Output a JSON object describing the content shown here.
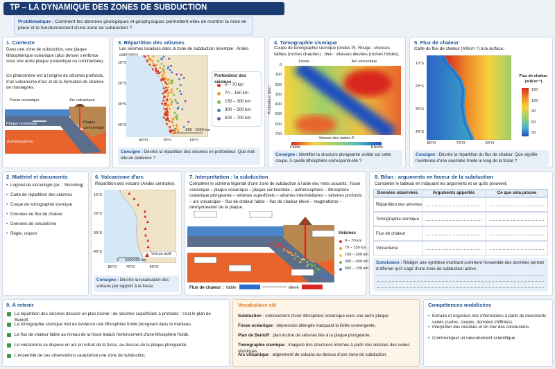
{
  "header": {
    "title": "TP – LA DYNAMIQUE DES ZONES DE SUBDUCTION",
    "problem_label": "Problématique :",
    "problem": "Comment les données géologiques et géophysiques permettent-elles de montrer la mise en place et le fonctionnement d'une zone de subduction ?"
  },
  "context": {
    "title": "1. Contexte",
    "p1": "Dans une zone de subduction, une plaque lithosphérique océanique (plus dense) s'enfonce sous une autre plaque (océanique ou continentale).",
    "p2": "Ce phénomène est à l'origine de séismes profonds, d'un volcanisme d'arc et de la formation de chaînes de montagnes.",
    "figure_labels": [
      "Fosse océanique",
      "Arc volcanique",
      "Plaque océanique",
      "Plaque continentale",
      "Asthénosphère"
    ]
  },
  "materiel": {
    "title": "2. Matériel et documents",
    "items": [
      "Logiciel de sismologie (ex. : Sismolog)",
      "Carte de répartition des séismes",
      "Coupe de tomographie sismique",
      "Données de flux de chaleur",
      "Données de volcanisme",
      "Règle, crayon"
    ]
  },
  "seismes": {
    "title": "3. Répartition des séismes",
    "caption": "Les séismes localisés dans la zone de subduction (exemple : Andes centrales).",
    "lat_labels": [
      "10°S",
      "20°S",
      "30°S",
      "40°S"
    ],
    "lon_labels": [
      "80°O",
      "70°O",
      "60°O"
    ],
    "scale": [
      "0",
      "500",
      "1000 km"
    ],
    "legend_title": "Profondeur des séismes",
    "legend": [
      {
        "label": "0 – 70 km",
        "color": "#e2352a"
      },
      {
        "label": "70 – 150 km",
        "color": "#f29a2e"
      },
      {
        "label": "150 – 300 km",
        "color": "#7cb844"
      },
      {
        "label": "300 – 500 km",
        "color": "#3b7fd4"
      },
      {
        "label": "500 – 700 km",
        "color": "#7a4fc0"
      }
    ],
    "consigne_label": "Consigne :",
    "consigne": "Décrire la répartition des séismes en profondeur. Que met-elle en évidence ?"
  },
  "tomographie": {
    "title": "4. Tomographie sismique",
    "caption": "Coupe de tomographie sismique (ondes P). Rouge : vitesses faibles (roches chaudes) ; bleu : vitesses élevées (roches froides).",
    "fosse": "Fosse",
    "arc": "Arc volcanique",
    "y_label": "Profondeur (km)",
    "yticks": [
      0,
      100,
      200,
      300,
      400,
      500,
      600,
      700
    ],
    "colorbar_title": "Vitesse des ondes P",
    "low": "Faible",
    "high": "Élevée",
    "consigne_label": "Consigne :",
    "consigne": "Identifier la structure plongeante visible sur cette coupe. À quelle lithosphère correspond-elle ?"
  },
  "flux": {
    "title": "5. Flux de chaleur",
    "caption": "Carte du flux de chaleur (mW.m⁻²) à la surface.",
    "lat_labels": [
      "10°S",
      "20°S",
      "30°S",
      "40°S"
    ],
    "lon_labels": [
      "80°O",
      "70°O",
      "60°O"
    ],
    "legend_title": "Flux de chaleur (mW.m⁻²)",
    "legend_ticks": [
      150,
      120,
      90,
      60,
      30
    ],
    "consigne_label": "Consigne :",
    "consigne": "Décrire la répartition du flux de chaleur. Que signifie l'existence d'une anomalie froide le long de la fosse ?"
  },
  "volcanisme": {
    "title": "6. Volcanisme d'arc",
    "caption": "Répartition des volcans (Andes centrales).",
    "lat_labels": [
      "10°S",
      "20°S",
      "30°S",
      "40°S"
    ],
    "lon_labels": [
      "80°O",
      "70°O",
      "60°O"
    ],
    "scale": [
      "0",
      "500",
      "1000 km"
    ],
    "legend": "Volcan actif",
    "consigne_label": "Consigne :",
    "consigne": "Décrire la localisation des volcans par rapport à la fosse."
  },
  "interpretation": {
    "title": "7. Interprétation : la subduction",
    "instruction": "Compléter le schéma légendé d'une zone de subduction à l'aide des mots suivants : fosse océanique – plaque océanique – plaque continentale – asthénosphère – lithosphère océanique plongeante – séismes superficiels – séismes intermédiaires – séismes profonds – arc volcanique – flux de chaleur faible – flux de chaleur élevé – magmatisme – déshydratation de la plaque.",
    "legend_title": "Séismes",
    "legend": [
      {
        "label": "0 – 70 km",
        "color": "#e2352a"
      },
      {
        "label": "70 – 150 km",
        "color": "#f29a2e"
      },
      {
        "label": "150 – 300 km",
        "color": "#e8d23a"
      },
      {
        "label": "300 – 500 km",
        "color": "#7cb844"
      },
      {
        "label": "500 – 700 km",
        "color": "#3b7fd4"
      }
    ],
    "flux_label": "Flux de chaleur :",
    "low": "faible",
    "high": "élevé"
  },
  "bilan": {
    "title": "8. Bilan : arguments en faveur de la subduction",
    "instruction": "Compléter le tableau en indiquant les arguments et ce qu'ils prouvent.",
    "headers": [
      "Données observées",
      "Arguments apportés",
      "Ce que cela prouve"
    ],
    "rows": [
      "Répartition des séismes",
      "Tomographie sismique",
      "Flux de chaleur",
      "Volcanisme"
    ],
    "conclusion_label": "Conclusion :",
    "conclusion": "Rédiger une synthèse montrant comment l'ensemble des données permet d'affirmer qu'il s'agit d'une zone de subduction active."
  },
  "retenir": {
    "title": "9. À retenir",
    "items": [
      "La répartition des séismes dessine un plan incliné : de séismes superficiels à profonds : c'est le plan de Benioff.",
      "La tomographie sismique met en évidence une lithosphère froide plongeant dans le manteau.",
      "Le flux de chaleur faible au niveau de la fosse traduit l'enfoncement d'une lithosphère froide.",
      "Le volcanisme se dispose en arc en retrait de la fosse, au-dessus de la plaque plongeante.",
      "L'ensemble de ces observations caractérise une zone de subduction."
    ]
  },
  "vocabulaire": {
    "title": "Vocabulaire clé",
    "items": [
      {
        "term": "Subduction",
        "def": " : enfoncement d'une lithosphère océanique sous une autre plaque."
      },
      {
        "term": "Fosse océanique",
        "def": " : dépression allongée marquant la limite convergente."
      },
      {
        "term": "Plan de Benioff",
        "def": " : plan incliné de séismes liés à la plaque plongeante."
      },
      {
        "term": "Tomographie sismique",
        "def": " : imagerie des structures internes à partir des vitesses des ondes sismiques."
      },
      {
        "term": "Arc volcanique",
        "def": " : alignement de volcans au-dessus d'une zone de subduction."
      }
    ]
  },
  "competences": {
    "title": "Compétences mobilisées",
    "items": [
      "Extraire et organiser des informations à partir de documents variés (cartes, coupes, données chiffrées).",
      "Interpréter des résultats et en tirer des conclusions.",
      "Communiquer un raisonnement scientifique."
    ]
  }
}
